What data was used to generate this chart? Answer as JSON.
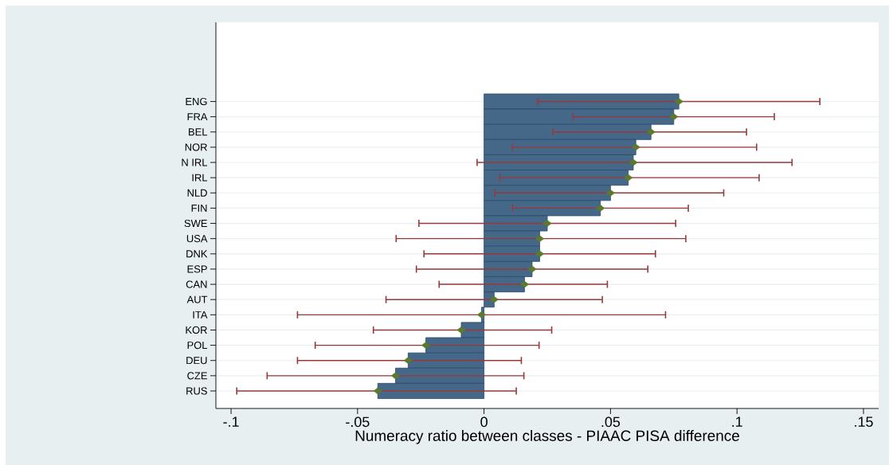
{
  "chart_data": {
    "type": "bar",
    "orientation": "horizontal",
    "xlabel": "Numeracy ratio between classes - PIAAC PISA difference",
    "categories": [
      "ENG",
      "FRA",
      "BEL",
      "NOR",
      "N IRL",
      "IRL",
      "NLD",
      "FIN",
      "SWE",
      "USA",
      "DNK",
      "ESP",
      "CAN",
      "AUT",
      "ITA",
      "KOR",
      "POL",
      "DEU",
      "CZE",
      "RUS"
    ],
    "xlim": [
      -0.106,
      0.156
    ],
    "xticks": [
      {
        "value": -0.1,
        "label": "-.1"
      },
      {
        "value": -0.05,
        "label": "-.05"
      },
      0,
      {
        "value": 0.05,
        "label": ".05"
      },
      {
        "value": 0.1,
        "label": ".1"
      },
      {
        "value": 0.15,
        "label": ".15"
      }
    ],
    "grid": "y",
    "series": [
      {
        "color": "#456889",
        "values": [
          0.077,
          0.075,
          0.066,
          0.06,
          0.059,
          0.057,
          0.05,
          0.046,
          0.025,
          0.022,
          0.022,
          0.019,
          0.016,
          0.004,
          -0.001,
          -0.009,
          -0.023,
          -0.03,
          -0.035,
          -0.042
        ]
      },
      {
        "type": "scatter",
        "color": "#5b7a2c",
        "marker": "diamond",
        "values": [
          0.077,
          0.075,
          0.066,
          0.06,
          0.059,
          0.057,
          0.05,
          0.046,
          0.025,
          0.022,
          0.022,
          0.019,
          0.016,
          0.004,
          -0.001,
          -0.009,
          -0.023,
          -0.03,
          -0.035,
          -0.042
        ],
        "errors": [
          [
            0.021,
            0.133
          ],
          [
            0.035,
            0.115
          ],
          [
            0.027,
            0.104
          ],
          [
            0.011,
            0.108
          ],
          [
            -0.003,
            0.122
          ],
          [
            0.006,
            0.109
          ],
          [
            0.004,
            0.095
          ],
          [
            0.011,
            0.081
          ],
          [
            -0.026,
            0.076
          ],
          [
            -0.035,
            0.08
          ],
          [
            -0.024,
            0.068
          ],
          [
            -0.027,
            0.065
          ],
          [
            -0.018,
            0.049
          ],
          [
            -0.039,
            0.047
          ],
          [
            -0.074,
            0.072
          ],
          [
            -0.044,
            0.027
          ],
          [
            -0.067,
            0.022
          ],
          [
            -0.074,
            0.015
          ],
          [
            -0.086,
            0.016
          ],
          [
            -0.098,
            0.013
          ]
        ]
      }
    ]
  }
}
